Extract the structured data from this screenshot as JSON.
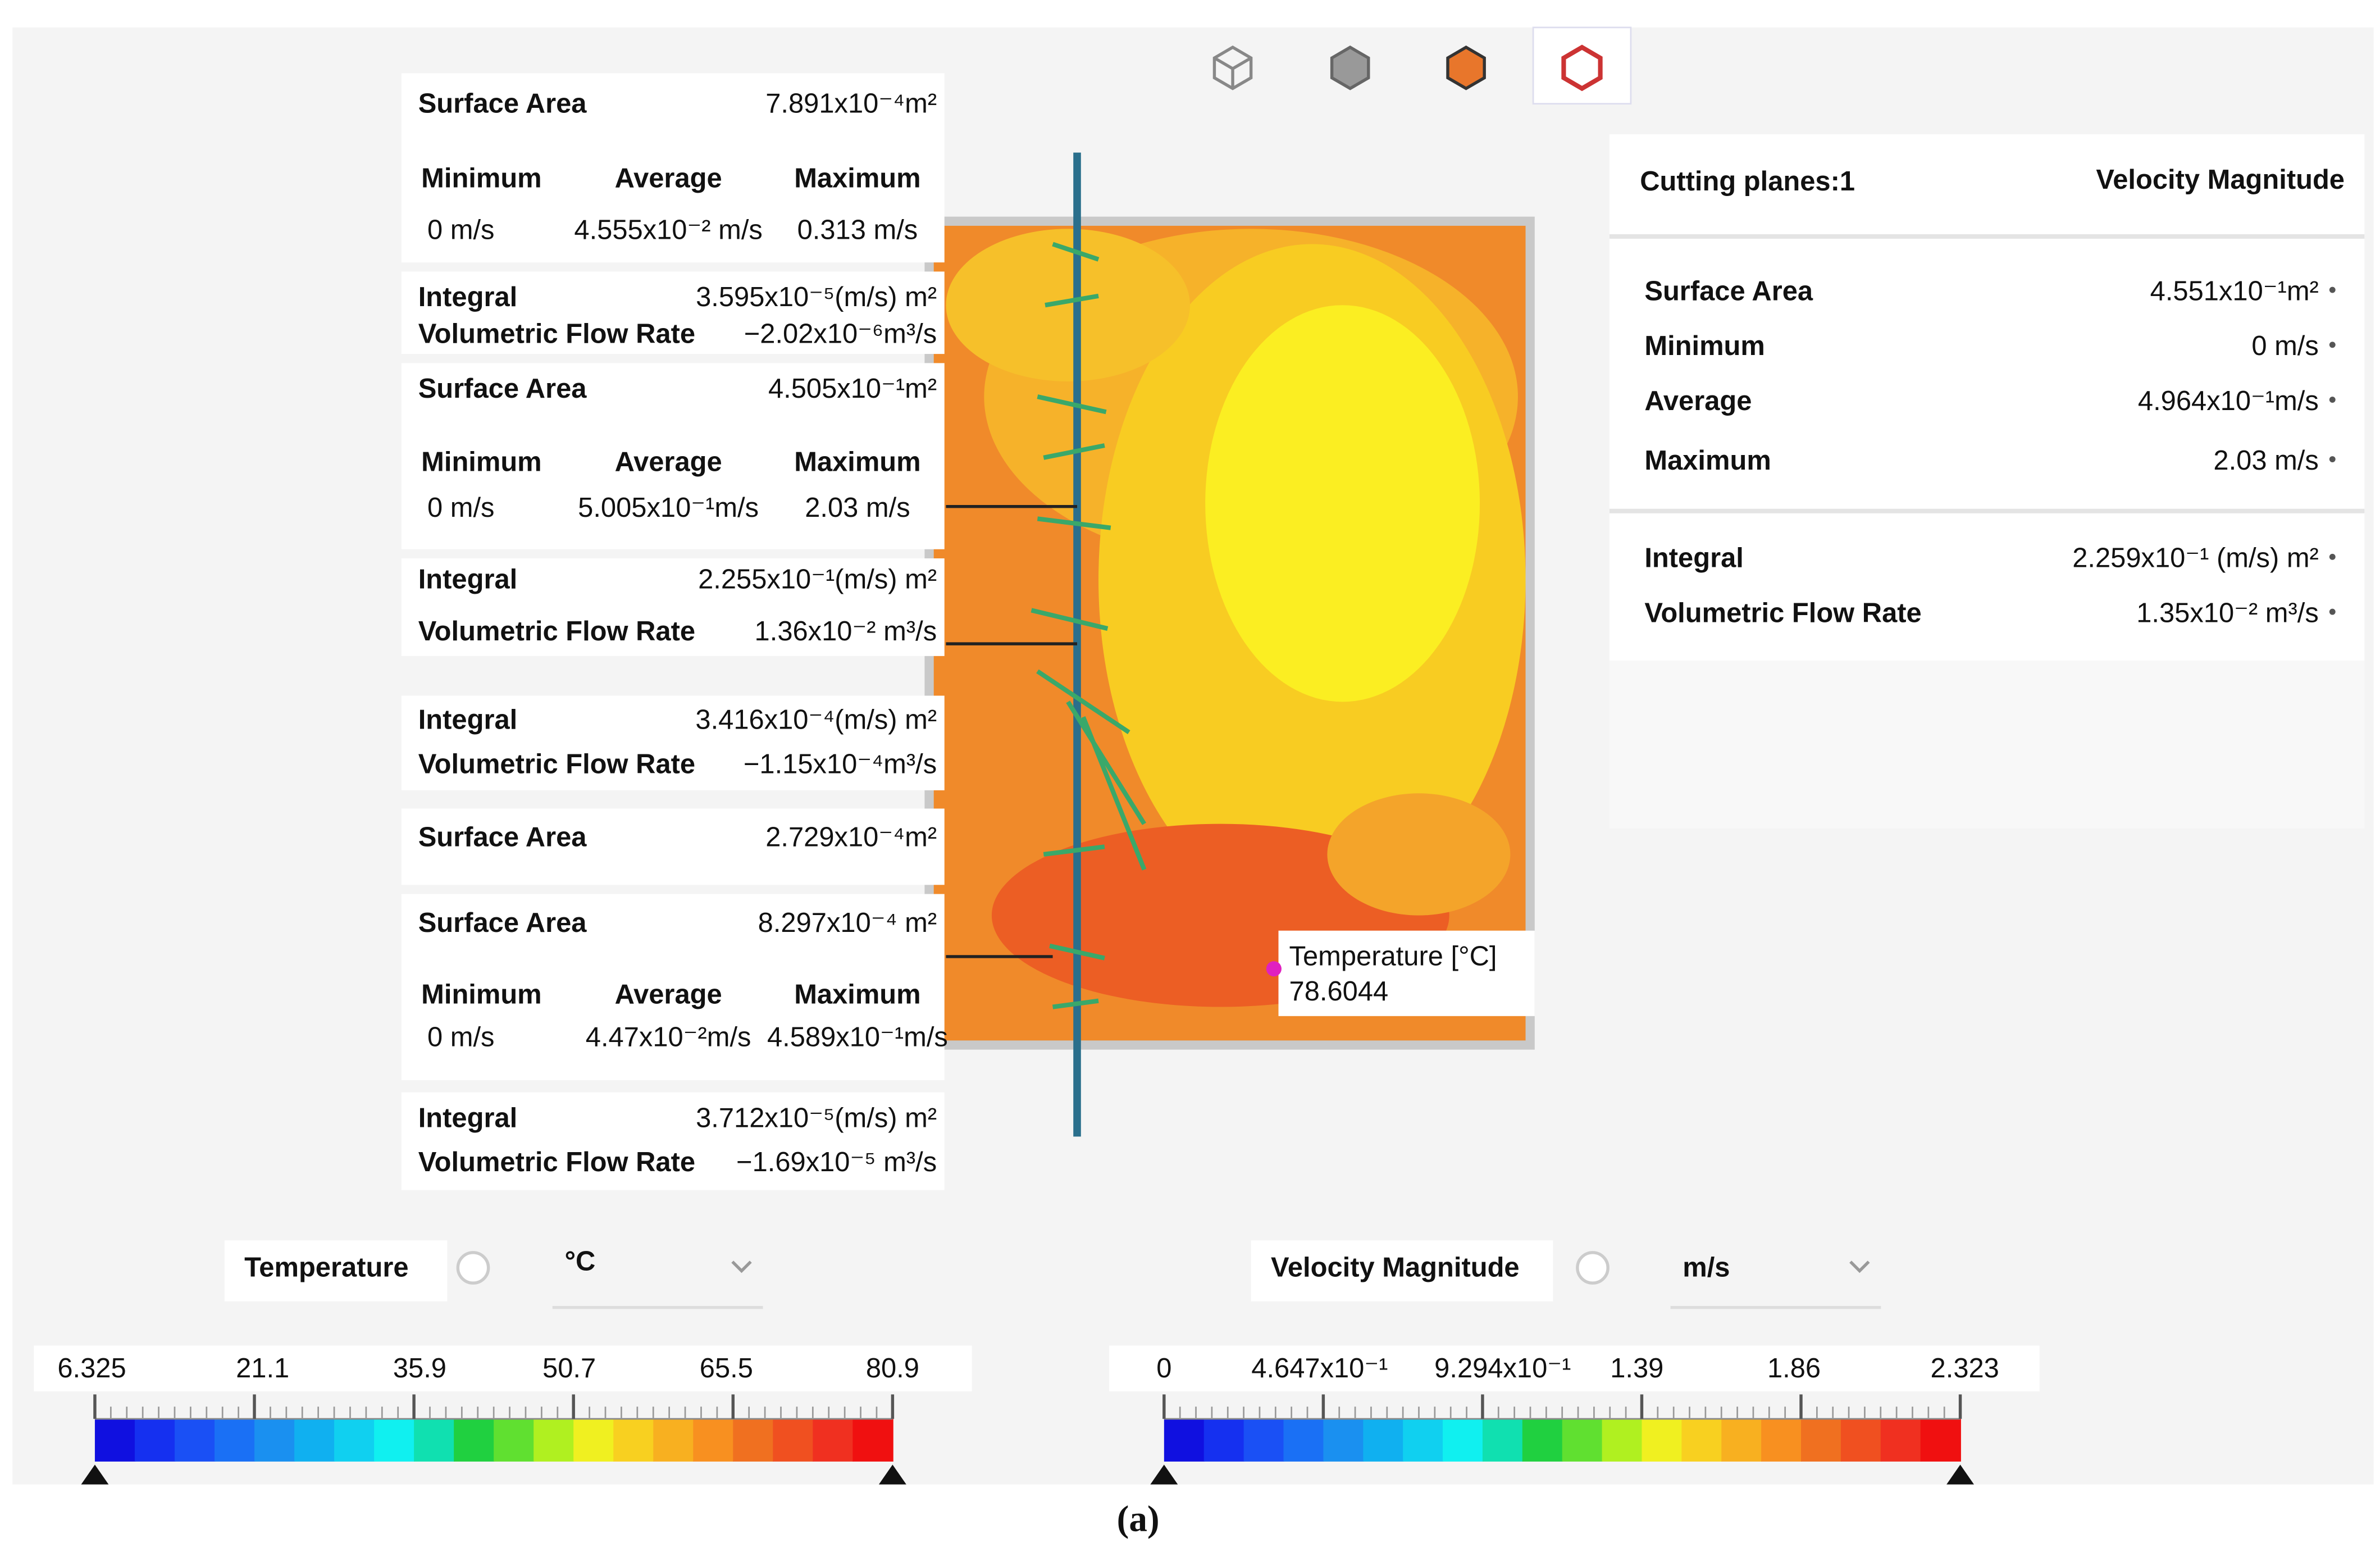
{
  "left_blocks": [
    {
      "rows": [
        [
          "Surface Area",
          "7.891x10⁻⁴m²"
        ],
        [
          "Minimum",
          "Average",
          "Maximum"
        ],
        [
          "0 m/s",
          "4.555x10⁻² m/s",
          "0.313 m/s"
        ]
      ]
    },
    {
      "rows": [
        [
          "Integral",
          "3.595x10⁻⁵(m/s) m²"
        ],
        [
          "Volumetric Flow Rate",
          "−2.02x10⁻⁶m³/s"
        ]
      ]
    },
    {
      "rows": [
        [
          "Surface Area",
          "4.505x10⁻¹m²"
        ],
        [
          "Minimum",
          "Average",
          "Maximum"
        ],
        [
          "0 m/s",
          "5.005x10⁻¹m/s",
          "2.03 m/s"
        ]
      ]
    },
    {
      "rows": [
        [
          "Integral",
          "2.255x10⁻¹(m/s) m²"
        ],
        [
          "Volumetric Flow Rate",
          "1.36x10⁻² m³/s"
        ]
      ]
    },
    {
      "rows": [
        [
          "Integral",
          "3.416x10⁻⁴(m/s) m²"
        ],
        [
          "Volumetric Flow Rate",
          "−1.15x10⁻⁴m³/s"
        ]
      ]
    },
    {
      "rows": [
        [
          "Surface Area",
          "2.729x10⁻⁴m²"
        ]
      ]
    },
    {
      "rows": [
        [
          "Surface Area",
          "8.297x10⁻⁴ m²"
        ],
        [
          "Minimum",
          "Average",
          "Maximum"
        ],
        [
          "0 m/s",
          "4.47x10⁻²m/s",
          "4.589x10⁻¹m/s"
        ]
      ]
    },
    {
      "rows": [
        [
          "Integral",
          "3.712x10⁻⁵(m/s) m²"
        ],
        [
          "Volumetric Flow Rate",
          "−1.69x10⁻⁵ m³/s"
        ]
      ]
    }
  ],
  "right_panel": {
    "title": "Cutting planes:1",
    "quantity": "Velocity Magnitude",
    "rows": [
      [
        "Surface Area",
        "4.551x10⁻¹m²"
      ],
      [
        "Minimum",
        "0 m/s"
      ],
      [
        "Average",
        "4.964x10⁻¹m/s"
      ],
      [
        "Maximum",
        "2.03 m/s"
      ],
      [
        "Integral",
        "2.259x10⁻¹ (m/s) m²"
      ],
      [
        "Volumetric Flow Rate",
        "1.35x10⁻² m³/s"
      ]
    ]
  },
  "probe": {
    "label": "Temperature [°C]",
    "value": "78.6044"
  },
  "legends": [
    {
      "name": "Temperature",
      "unit": "°C",
      "ticks": [
        "6.325",
        "21.1",
        "35.9",
        "50.7",
        "65.5",
        "80.9"
      ]
    },
    {
      "name": "Velocity Magnitude",
      "unit": "m/s",
      "ticks": [
        "0",
        "4.647x10⁻¹",
        "9.294x10⁻¹",
        "1.39",
        "1.86",
        "2.323"
      ]
    }
  ],
  "caption": "(a)"
}
